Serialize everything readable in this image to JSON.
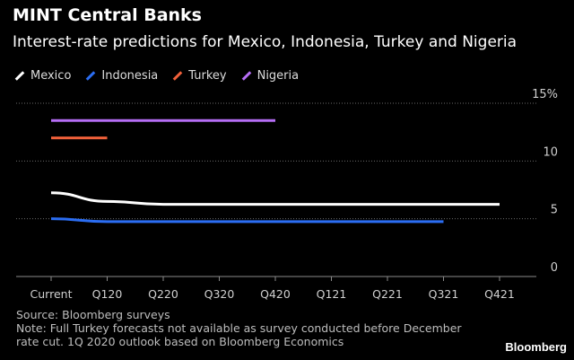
{
  "header": {
    "title": "MINT Central Banks",
    "subtitle": "Interest-rate predictions for Mexico, Indonesia, Turkey and Nigeria"
  },
  "legend": [
    {
      "label": "Mexico",
      "color": "#ffffff"
    },
    {
      "label": "Indonesia",
      "color": "#2b6df2"
    },
    {
      "label": "Turkey",
      "color": "#f0603a"
    },
    {
      "label": "Nigeria",
      "color": "#b66ef5"
    }
  ],
  "chart_data": {
    "type": "line",
    "title": "MINT Central Banks",
    "subtitle": "Interest-rate predictions for Mexico, Indonesia, Turkey and Nigeria",
    "xlabel": "",
    "ylabel": "",
    "categories": [
      "Current",
      "Q120",
      "Q220",
      "Q320",
      "Q420",
      "Q121",
      "Q221",
      "Q321",
      "Q421"
    ],
    "y_ticks": [
      0,
      5,
      10,
      15
    ],
    "y_tick_labels": [
      "0",
      "5",
      "10",
      "15%"
    ],
    "ylim": [
      0,
      15
    ],
    "grid": true,
    "legend_position": "top-left",
    "series": [
      {
        "name": "Mexico",
        "color": "#ffffff",
        "values": [
          7.25,
          6.5,
          6.25,
          6.25,
          6.25,
          6.25,
          6.25,
          6.25,
          6.25
        ]
      },
      {
        "name": "Indonesia",
        "color": "#2b6df2",
        "values": [
          5.0,
          4.75,
          4.75,
          4.75,
          4.75,
          4.75,
          4.75,
          4.75,
          null
        ]
      },
      {
        "name": "Turkey",
        "color": "#f0603a",
        "values": [
          12.0,
          12.0,
          null,
          null,
          null,
          null,
          null,
          null,
          null
        ]
      },
      {
        "name": "Nigeria",
        "color": "#b66ef5",
        "values": [
          13.5,
          13.5,
          13.5,
          13.5,
          13.5,
          null,
          null,
          null,
          null
        ]
      }
    ]
  },
  "footer": {
    "source": "Source: Bloomberg surveys",
    "note_line1": "Note: Full Turkey forecasts not available as survey conducted before December",
    "note_line2": "rate cut. 1Q 2020 outlook based on Bloomberg Economics",
    "brand": "Bloomberg"
  }
}
